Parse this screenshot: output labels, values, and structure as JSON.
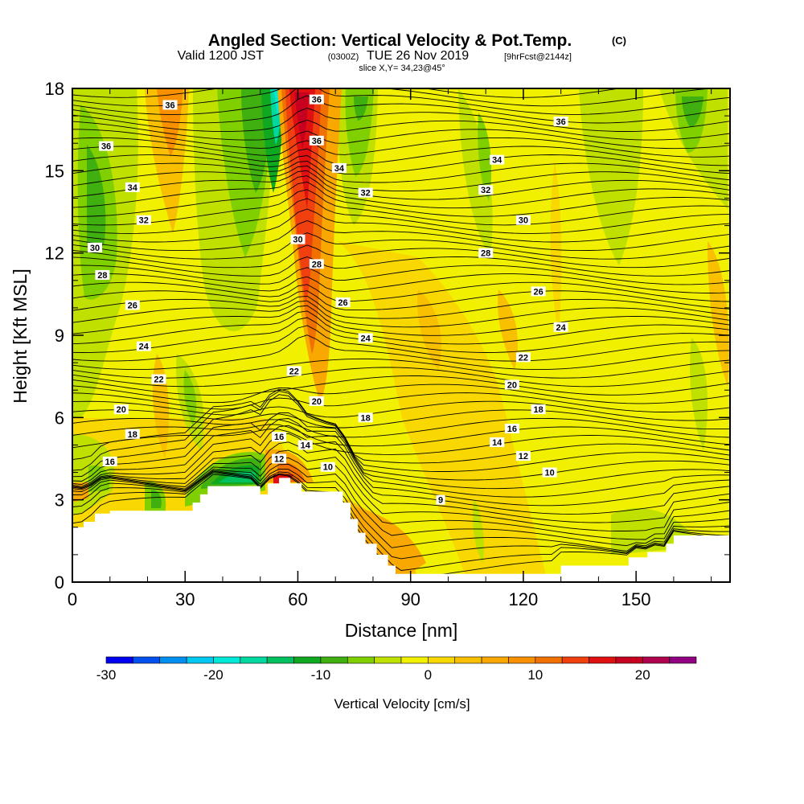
{
  "chart_data": {
    "type": "heatmap",
    "title": "Angled Section: Vertical Velocity & Pot.Temp.",
    "title_units": "(C)",
    "subtitle": {
      "valid": "Valid 1200 JST",
      "utc": "(0300Z)",
      "date": "TUE 26 Nov 2019",
      "forecast": "[9hrFcst@2144z]"
    },
    "slice": "slice X,Y= 34,23@45°",
    "xlabel": "Distance [nm]",
    "ylabel": "Height [Kft MSL]",
    "xlim": [
      0,
      175
    ],
    "ylim": [
      0,
      18
    ],
    "x_ticks": [
      "0",
      "30",
      "60",
      "90",
      "120",
      "150"
    ],
    "y_ticks": [
      "0",
      "3",
      "6",
      "9",
      "12",
      "15",
      "18"
    ],
    "colorbar": {
      "label": "Vertical Velocity [cm/s]",
      "ticks": [
        "-30",
        "-20",
        "-10",
        "0",
        "10",
        "20"
      ],
      "min": -30,
      "max": 25,
      "step": 2.5,
      "colors": [
        "#0000f0",
        "#0050f0",
        "#0090f0",
        "#00c8f0",
        "#00e8d8",
        "#00d8a0",
        "#00c060",
        "#10a820",
        "#40b010",
        "#80d000",
        "#c0e000",
        "#f0f000",
        "#f8d800",
        "#f8c000",
        "#f8a800",
        "#f89000",
        "#f07000",
        "#f04010",
        "#e01010",
        "#c80020",
        "#b00050",
        "#900080"
      ]
    },
    "theta_contour_labels": [
      {
        "x": 26,
        "y": 17.4,
        "text": "36"
      },
      {
        "x": 65,
        "y": 17.6,
        "text": "36"
      },
      {
        "x": 9,
        "y": 15.9,
        "text": "36"
      },
      {
        "x": 65,
        "y": 16.1,
        "text": "36"
      },
      {
        "x": 130,
        "y": 16.8,
        "text": "36"
      },
      {
        "x": 71,
        "y": 15.1,
        "text": "34"
      },
      {
        "x": 113,
        "y": 15.4,
        "text": "34"
      },
      {
        "x": 16,
        "y": 14.4,
        "text": "34"
      },
      {
        "x": 78,
        "y": 14.2,
        "text": "32"
      },
      {
        "x": 110,
        "y": 14.3,
        "text": "32"
      },
      {
        "x": 19,
        "y": 13.2,
        "text": "32"
      },
      {
        "x": 60,
        "y": 12.5,
        "text": "30"
      },
      {
        "x": 120,
        "y": 13.2,
        "text": "30"
      },
      {
        "x": 6,
        "y": 12.2,
        "text": "30"
      },
      {
        "x": 65,
        "y": 11.6,
        "text": "28"
      },
      {
        "x": 110,
        "y": 12.0,
        "text": "28"
      },
      {
        "x": 8,
        "y": 11.2,
        "text": "28"
      },
      {
        "x": 72,
        "y": 10.2,
        "text": "26"
      },
      {
        "x": 124,
        "y": 10.6,
        "text": "26"
      },
      {
        "x": 16,
        "y": 10.1,
        "text": "26"
      },
      {
        "x": 78,
        "y": 8.9,
        "text": "24"
      },
      {
        "x": 130,
        "y": 9.3,
        "text": "24"
      },
      {
        "x": 19,
        "y": 8.6,
        "text": "24"
      },
      {
        "x": 59,
        "y": 7.7,
        "text": "22"
      },
      {
        "x": 120,
        "y": 8.2,
        "text": "22"
      },
      {
        "x": 23,
        "y": 7.4,
        "text": "22"
      },
      {
        "x": 65,
        "y": 6.6,
        "text": "20"
      },
      {
        "x": 117,
        "y": 7.2,
        "text": "20"
      },
      {
        "x": 13,
        "y": 6.3,
        "text": "20"
      },
      {
        "x": 78,
        "y": 6.0,
        "text": "18"
      },
      {
        "x": 124,
        "y": 6.3,
        "text": "18"
      },
      {
        "x": 16,
        "y": 5.4,
        "text": "18"
      },
      {
        "x": 55,
        "y": 5.3,
        "text": "16"
      },
      {
        "x": 117,
        "y": 5.6,
        "text": "16"
      },
      {
        "x": 10,
        "y": 4.4,
        "text": "16"
      },
      {
        "x": 62,
        "y": 5.0,
        "text": "14"
      },
      {
        "x": 113,
        "y": 5.1,
        "text": "14"
      },
      {
        "x": 55,
        "y": 4.5,
        "text": "12"
      },
      {
        "x": 120,
        "y": 4.6,
        "text": "12"
      },
      {
        "x": 68,
        "y": 4.2,
        "text": "10"
      },
      {
        "x": 127,
        "y": 4.0,
        "text": "10"
      },
      {
        "x": 98,
        "y": 3.0,
        "text": "9"
      }
    ],
    "terrain_kft": [
      [
        0,
        2.0
      ],
      [
        3,
        2.2
      ],
      [
        6,
        2.5
      ],
      [
        10,
        2.6
      ],
      [
        30,
        2.6
      ],
      [
        32,
        2.9
      ],
      [
        34,
        3.2
      ],
      [
        36,
        3.5
      ],
      [
        49,
        3.5
      ],
      [
        50,
        3.2
      ],
      [
        52,
        3.6
      ],
      [
        55,
        3.8
      ],
      [
        58,
        3.6
      ],
      [
        61,
        3.3
      ],
      [
        70,
        3.3
      ],
      [
        72,
        2.9
      ],
      [
        74,
        2.3
      ],
      [
        76,
        1.8
      ],
      [
        78,
        1.4
      ],
      [
        81,
        1.0
      ],
      [
        84,
        0.6
      ],
      [
        86,
        0.3
      ],
      [
        90,
        0.3
      ],
      [
        126,
        0.3
      ],
      [
        130,
        0.6
      ],
      [
        144,
        0.6
      ],
      [
        148,
        0.9
      ],
      [
        153,
        1.1
      ],
      [
        158,
        1.4
      ],
      [
        160,
        1.7
      ],
      [
        175,
        1.7
      ]
    ]
  }
}
